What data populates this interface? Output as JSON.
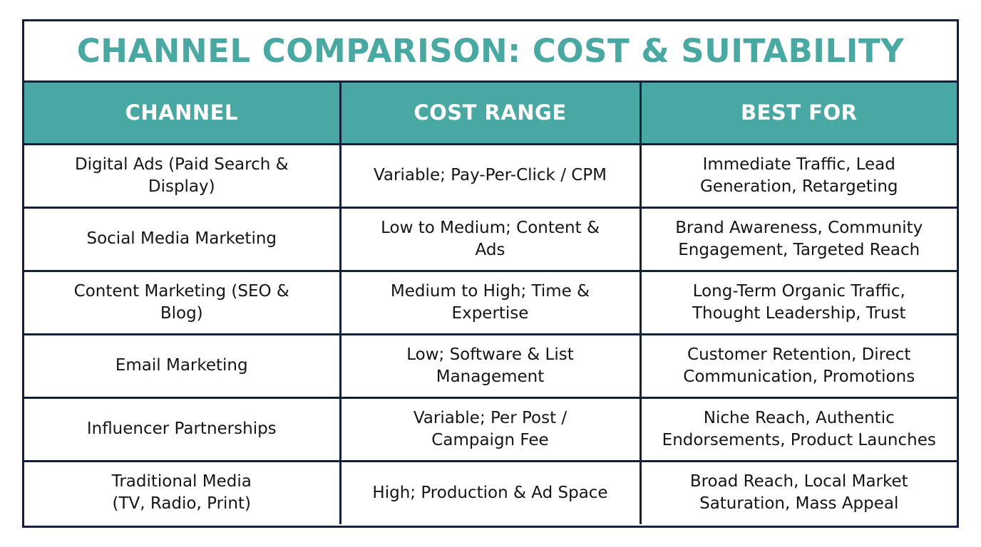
{
  "title": "CHANNEL COMPARISON: COST & SUITABILITY",
  "colors": {
    "accent": "#4aa8a2",
    "border": "#14213d",
    "header_text": "#ffffff"
  },
  "table": {
    "headers": [
      "CHANNEL",
      "COST RANGE",
      "BEST FOR"
    ],
    "rows": [
      {
        "channel": [
          "Digital Ads (Paid Search &",
          "Display)"
        ],
        "cost": [
          "Variable; Pay-Per-Click / CPM"
        ],
        "best_for": [
          "Immediate Traffic, Lead",
          "Generation, Retargeting"
        ]
      },
      {
        "channel": [
          "Social Media Marketing"
        ],
        "cost": [
          "Low to Medium; Content &",
          "Ads"
        ],
        "best_for": [
          "Brand Awareness, Community",
          "Engagement, Targeted Reach"
        ]
      },
      {
        "channel": [
          "Content Marketing (SEO &",
          "Blog)"
        ],
        "cost": [
          "Medium to High; Time &",
          "Expertise"
        ],
        "best_for": [
          "Long-Term Organic Traffic,",
          "Thought Leadership, Trust"
        ]
      },
      {
        "channel": [
          "Email Marketing"
        ],
        "cost": [
          "Low; Software & List",
          "Management"
        ],
        "best_for": [
          "Customer Retention, Direct",
          "Communication, Promotions"
        ]
      },
      {
        "channel": [
          "Influencer Partnerships"
        ],
        "cost": [
          "Variable; Per Post /",
          "Campaign Fee"
        ],
        "best_for": [
          "Niche Reach, Authentic",
          "Endorsements, Product Launches"
        ]
      },
      {
        "channel": [
          "Traditional Media",
          "(TV, Radio, Print)"
        ],
        "cost": [
          "High; Production & Ad Space"
        ],
        "best_for": [
          "Broad Reach, Local Market",
          "Saturation, Mass Appeal"
        ]
      }
    ]
  }
}
